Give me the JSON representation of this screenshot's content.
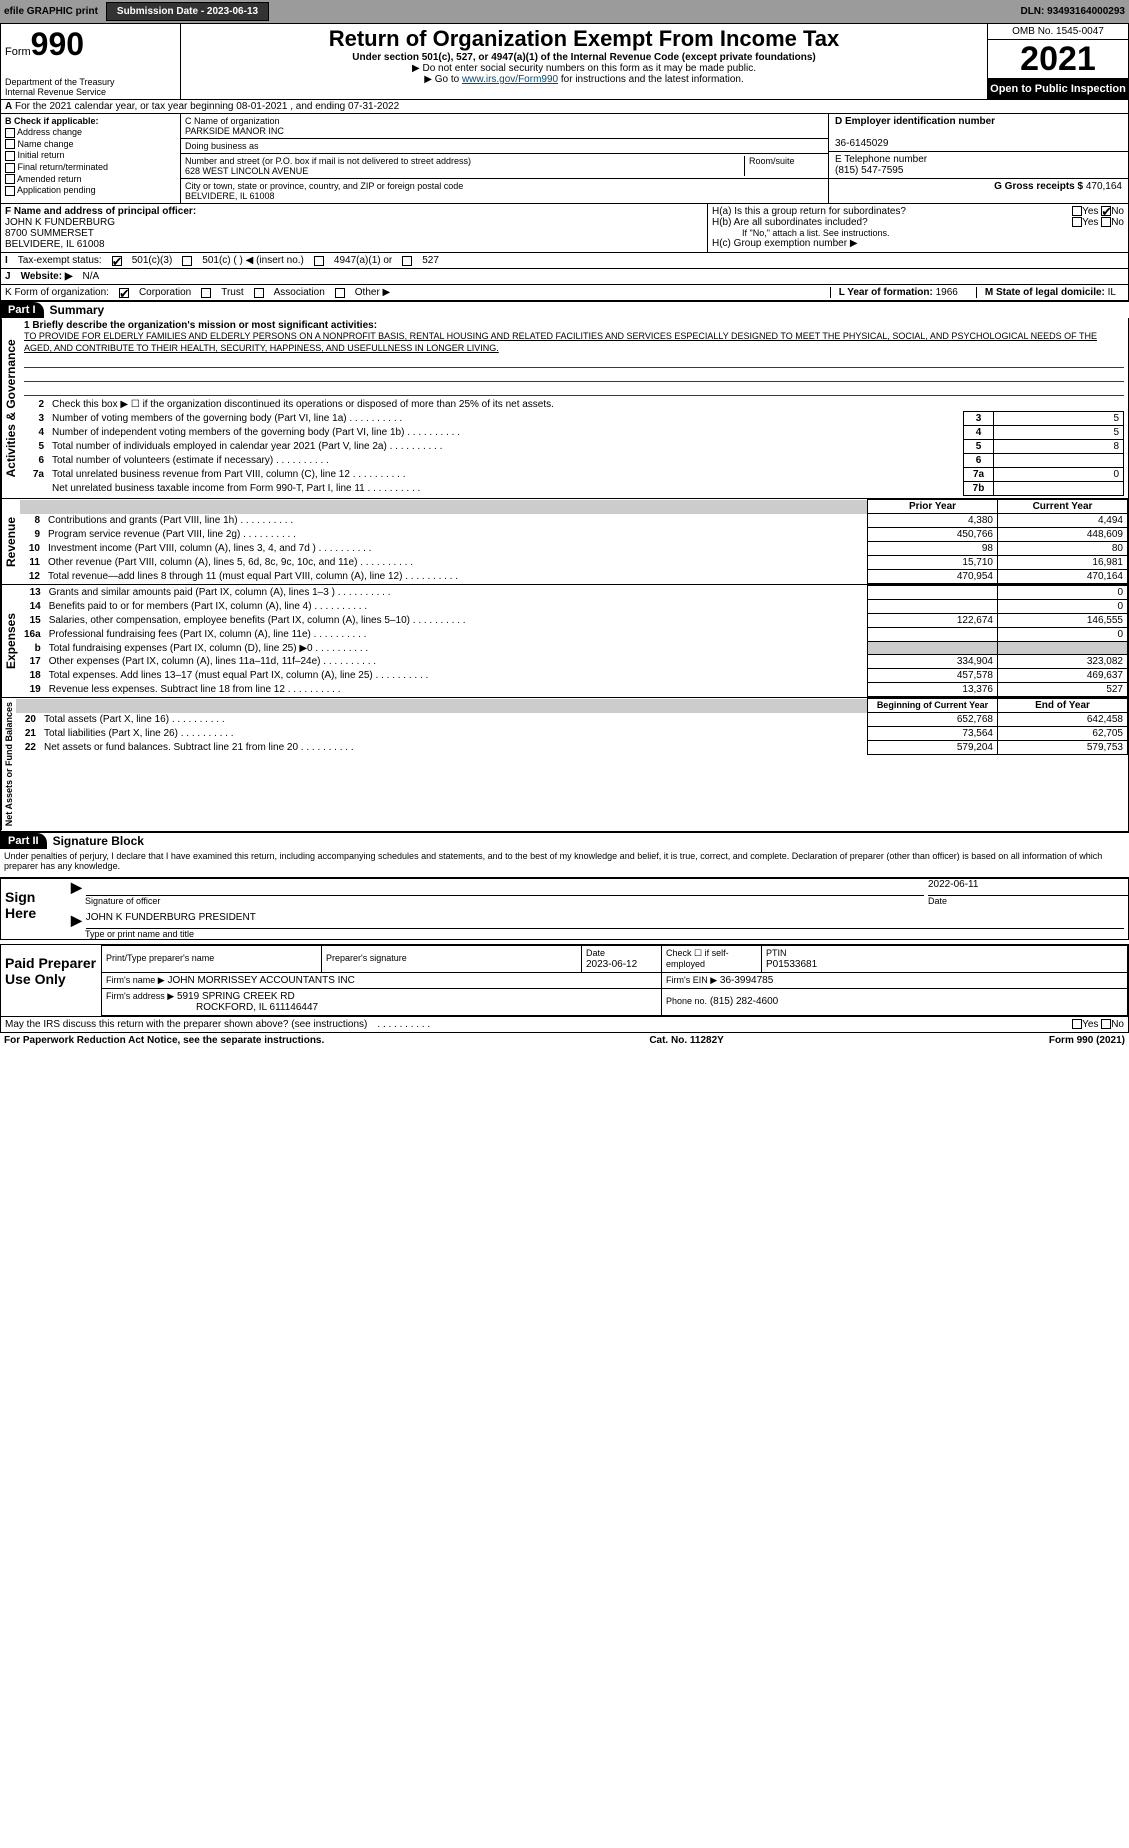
{
  "topbar": {
    "efile": "efile GRAPHIC print",
    "submission_label": "Submission Date - 2023-06-13",
    "dln": "DLN: 93493164000293"
  },
  "header": {
    "form_prefix": "Form",
    "form_number": "990",
    "dept": "Department of the Treasury",
    "irs": "Internal Revenue Service",
    "title": "Return of Organization Exempt From Income Tax",
    "subtitle": "Under section 501(c), 527, or 4947(a)(1) of the Internal Revenue Code (except private foundations)",
    "note1": "▶ Do not enter social security numbers on this form as it may be made public.",
    "note2_prefix": "▶ Go to ",
    "note2_link": "www.irs.gov/Form990",
    "note2_suffix": " for instructions and the latest information.",
    "omb": "OMB No. 1545-0047",
    "year": "2021",
    "open": "Open to Public Inspection"
  },
  "section_a": "For the 2021 calendar year, or tax year beginning 08-01-2021   , and ending 07-31-2022",
  "section_b": {
    "label": "B Check if applicable:",
    "items": [
      "Address change",
      "Name change",
      "Initial return",
      "Final return/terminated",
      "Amended return",
      "Application pending"
    ]
  },
  "section_c": {
    "name_label": "C Name of organization",
    "name": "PARKSIDE MANOR INC",
    "dba_label": "Doing business as",
    "addr_label": "Number and street (or P.O. box if mail is not delivered to street address)",
    "room_label": "Room/suite",
    "addr": "628 WEST LINCOLN AVENUE",
    "city_label": "City or town, state or province, country, and ZIP or foreign postal code",
    "city": "BELVIDERE, IL  61008"
  },
  "section_d": {
    "label": "D Employer identification number",
    "ein": "36-6145029"
  },
  "section_e": {
    "label": "E Telephone number",
    "phone": "(815) 547-7595"
  },
  "section_g": {
    "label_prefix": "G Gross receipts $ ",
    "amount": "470,164"
  },
  "section_f": {
    "label": "F Name and address of principal officer:",
    "name": "JOHN K FUNDERBURG",
    "addr1": "8700 SUMMERSET",
    "addr2": "BELVIDERE, IL  61008"
  },
  "section_h": {
    "ha": "H(a)  Is this a group return for subordinates?",
    "hb": "H(b)  Are all subordinates included?",
    "hb_note": "If \"No,\" attach a list. See instructions.",
    "hc": "H(c)  Group exemption number ▶"
  },
  "tax_status": {
    "label": "Tax-exempt status:",
    "opts": [
      "501(c)(3)",
      "501(c) (  ) ◀ (insert no.)",
      "4947(a)(1) or",
      "527"
    ]
  },
  "section_j": {
    "label": "J",
    "text": "Website: ▶",
    "value": "N/A"
  },
  "section_k": {
    "label": "K Form of organization:",
    "opts": [
      "Corporation",
      "Trust",
      "Association",
      "Other ▶"
    ]
  },
  "section_l": {
    "label": "L Year of formation: ",
    "value": "1966"
  },
  "section_m": {
    "label": "M State of legal domicile: ",
    "value": "IL"
  },
  "part1": {
    "header": "Part I",
    "title": "Summary",
    "line1_label": "1  Briefly describe the organization's mission or most significant activities:",
    "mission": "TO PROVIDE FOR ELDERLY FAMILIES AND ELDERLY PERSONS ON A NONPROFIT BASIS, RENTAL HOUSING AND RELATED FACILITIES AND SERVICES ESPECIALLY DESIGNED TO MEET THE PHYSICAL, SOCIAL, AND PSYCHOLOGICAL NEEDS OF THE AGED, AND CONTRIBUTE TO THEIR HEALTH, SECURITY, HAPPINESS, AND USEFULLNESS IN LONGER LIVING.",
    "line2": "Check this box ▶ ☐ if the organization discontinued its operations or disposed of more than 25% of its net assets.",
    "governance_lines": [
      {
        "n": "3",
        "text": "Number of voting members of the governing body (Part VI, line 1a)",
        "box": "3",
        "val": "5"
      },
      {
        "n": "4",
        "text": "Number of independent voting members of the governing body (Part VI, line 1b)",
        "box": "4",
        "val": "5"
      },
      {
        "n": "5",
        "text": "Total number of individuals employed in calendar year 2021 (Part V, line 2a)",
        "box": "5",
        "val": "8"
      },
      {
        "n": "6",
        "text": "Total number of volunteers (estimate if necessary)",
        "box": "6",
        "val": ""
      },
      {
        "n": "7a",
        "text": "Total unrelated business revenue from Part VIII, column (C), line 12",
        "box": "7a",
        "val": "0"
      },
      {
        "n": "",
        "text": "Net unrelated business taxable income from Form 990-T, Part I, line 11",
        "box": "7b",
        "val": ""
      }
    ],
    "col_prior": "Prior Year",
    "col_current": "Current Year",
    "revenue_lines": [
      {
        "n": "8",
        "text": "Contributions and grants (Part VIII, line 1h)",
        "prior": "4,380",
        "curr": "4,494"
      },
      {
        "n": "9",
        "text": "Program service revenue (Part VIII, line 2g)",
        "prior": "450,766",
        "curr": "448,609"
      },
      {
        "n": "10",
        "text": "Investment income (Part VIII, column (A), lines 3, 4, and 7d )",
        "prior": "98",
        "curr": "80"
      },
      {
        "n": "11",
        "text": "Other revenue (Part VIII, column (A), lines 5, 6d, 8c, 9c, 10c, and 11e)",
        "prior": "15,710",
        "curr": "16,981"
      },
      {
        "n": "12",
        "text": "Total revenue—add lines 8 through 11 (must equal Part VIII, column (A), line 12)",
        "prior": "470,954",
        "curr": "470,164"
      }
    ],
    "expense_lines": [
      {
        "n": "13",
        "text": "Grants and similar amounts paid (Part IX, column (A), lines 1–3 )",
        "prior": "",
        "curr": "0"
      },
      {
        "n": "14",
        "text": "Benefits paid to or for members (Part IX, column (A), line 4)",
        "prior": "",
        "curr": "0"
      },
      {
        "n": "15",
        "text": "Salaries, other compensation, employee benefits (Part IX, column (A), lines 5–10)",
        "prior": "122,674",
        "curr": "146,555"
      },
      {
        "n": "16a",
        "text": "Professional fundraising fees (Part IX, column (A), line 11e)",
        "prior": "",
        "curr": "0"
      },
      {
        "n": "b",
        "text": "Total fundraising expenses (Part IX, column (D), line 25) ▶0",
        "prior": "SHADE",
        "curr": "SHADE"
      },
      {
        "n": "17",
        "text": "Other expenses (Part IX, column (A), lines 11a–11d, 11f–24e)",
        "prior": "334,904",
        "curr": "323,082"
      },
      {
        "n": "18",
        "text": "Total expenses. Add lines 13–17 (must equal Part IX, column (A), line 25)",
        "prior": "457,578",
        "curr": "469,637"
      },
      {
        "n": "19",
        "text": "Revenue less expenses. Subtract line 18 from line 12",
        "prior": "13,376",
        "curr": "527"
      }
    ],
    "col_begin": "Beginning of Current Year",
    "col_end": "End of Year",
    "net_lines": [
      {
        "n": "20",
        "text": "Total assets (Part X, line 16)",
        "prior": "652,768",
        "curr": "642,458"
      },
      {
        "n": "21",
        "text": "Total liabilities (Part X, line 26)",
        "prior": "73,564",
        "curr": "62,705"
      },
      {
        "n": "22",
        "text": "Net assets or fund balances. Subtract line 21 from line 20",
        "prior": "579,204",
        "curr": "579,753"
      }
    ],
    "side_gov": "Activities & Governance",
    "side_rev": "Revenue",
    "side_exp": "Expenses",
    "side_net": "Net Assets or Fund Balances"
  },
  "part2": {
    "header": "Part II",
    "title": "Signature Block",
    "penalty": "Under penalties of perjury, I declare that I have examined this return, including accompanying schedules and statements, and to the best of my knowledge and belief, it is true, correct, and complete. Declaration of preparer (other than officer) is based on all information of which preparer has any knowledge.",
    "sign_here": "Sign Here",
    "sig_officer": "Signature of officer",
    "sig_date": "2022-06-11",
    "date_label": "Date",
    "officer_name": "JOHN K FUNDERBURG  PRESIDENT",
    "officer_label": "Type or print name and title",
    "paid_prep": "Paid Preparer Use Only",
    "prep_name_label": "Print/Type preparer's name",
    "prep_sig_label": "Preparer's signature",
    "prep_date_label": "Date",
    "prep_date": "2023-06-12",
    "prep_check_label": "Check ☐ if self-employed",
    "ptin_label": "PTIN",
    "ptin": "P01533681",
    "firm_name_label": "Firm's name    ▶",
    "firm_name": "JOHN MORRISSEY ACCOUNTANTS INC",
    "firm_ein_label": "Firm's EIN ▶",
    "firm_ein": "36-3994785",
    "firm_addr_label": "Firm's address ▶",
    "firm_addr1": "5919 SPRING CREEK RD",
    "firm_addr2": "ROCKFORD, IL  611146447",
    "firm_phone_label": "Phone no.",
    "firm_phone": "(815) 282-4600",
    "may_irs": "May the IRS discuss this return with the preparer shown above? (see instructions)"
  },
  "footer": {
    "pra": "For Paperwork Reduction Act Notice, see the separate instructions.",
    "cat": "Cat. No. 11282Y",
    "form": "Form 990 (2021)"
  }
}
